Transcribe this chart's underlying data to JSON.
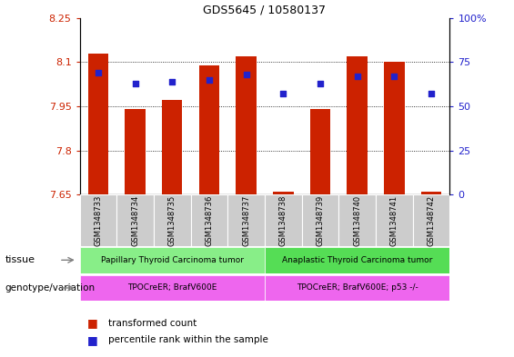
{
  "title": "GDS5645 / 10580137",
  "samples": [
    "GSM1348733",
    "GSM1348734",
    "GSM1348735",
    "GSM1348736",
    "GSM1348737",
    "GSM1348738",
    "GSM1348739",
    "GSM1348740",
    "GSM1348741",
    "GSM1348742"
  ],
  "transformed_count": [
    8.13,
    7.94,
    7.97,
    8.09,
    8.12,
    7.66,
    7.94,
    8.12,
    8.1,
    7.66
  ],
  "percentile_rank": [
    69,
    63,
    64,
    65,
    68,
    57,
    63,
    67,
    67,
    57
  ],
  "ylim_left": [
    7.65,
    8.25
  ],
  "ylim_right": [
    0,
    100
  ],
  "yticks_left": [
    7.65,
    7.8,
    7.95,
    8.1,
    8.25
  ],
  "ytick_labels_left": [
    "7.65",
    "7.8",
    "7.95",
    "8.1",
    "8.25"
  ],
  "yticks_right": [
    0,
    25,
    50,
    75,
    100
  ],
  "ytick_labels_right": [
    "0",
    "25",
    "50",
    "75",
    "100%"
  ],
  "bar_color": "#cc2200",
  "dot_color": "#2222cc",
  "grid_color": "#000000",
  "tissue_group1": "Papillary Thyroid Carcinoma tumor",
  "tissue_group2": "Anaplastic Thyroid Carcinoma tumor",
  "tissue_color1": "#88ee88",
  "tissue_color2": "#55dd55",
  "genotype_group1": "TPOCreER; BrafV600E",
  "genotype_group2": "TPOCreER; BrafV600E; p53 -/-",
  "genotype_color": "#ee66ee",
  "legend_red_label": "transformed count",
  "legend_blue_label": "percentile rank within the sample",
  "tissue_label": "tissue",
  "genotype_label": "genotype/variation",
  "bg_color": "#ffffff",
  "tick_label_color_left": "#cc2200",
  "tick_label_color_right": "#2222cc"
}
